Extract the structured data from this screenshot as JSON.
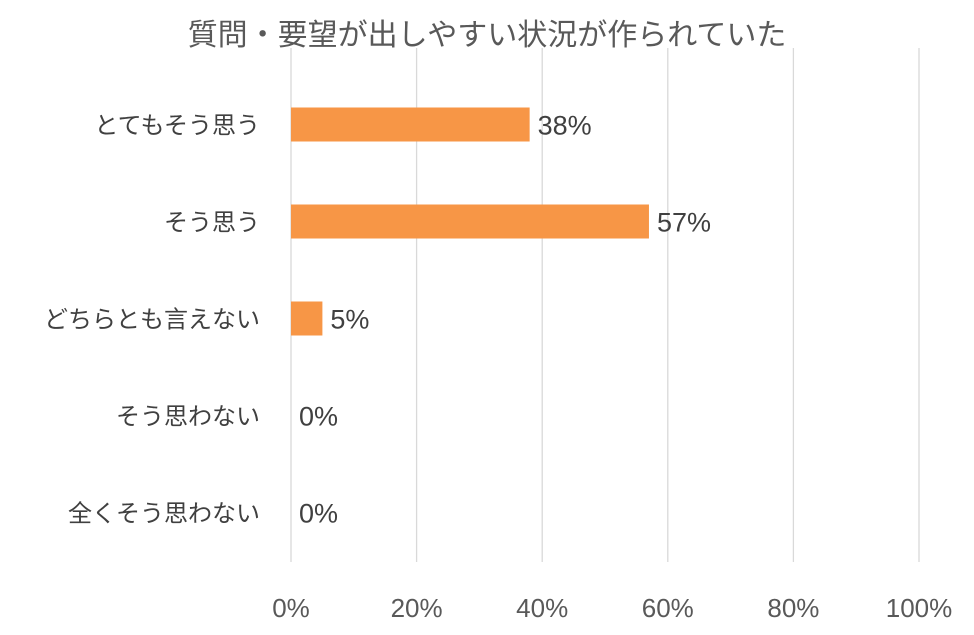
{
  "chart_data": {
    "type": "bar",
    "orientation": "horizontal",
    "title": "質問・要望が出しやすい状況が作られていた",
    "categories": [
      "とてもそう思う",
      "そう思う",
      "どちらとも言えない",
      "そう思わない",
      "全くそう思わない"
    ],
    "values": [
      38,
      57,
      5,
      0,
      0
    ],
    "data_labels": [
      "38%",
      "57%",
      "5%",
      "0%",
      "0%"
    ],
    "xlim": [
      0,
      100
    ],
    "x_ticks": [
      0,
      20,
      40,
      60,
      80,
      100
    ],
    "x_tick_labels": [
      "0%",
      "20%",
      "40%",
      "60%",
      "80%",
      "100%"
    ],
    "grid": true,
    "legend": "none",
    "bar_color": "#f79646"
  }
}
